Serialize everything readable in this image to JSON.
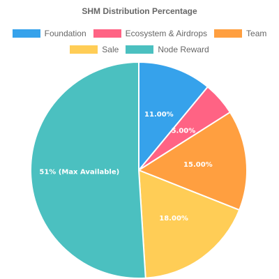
{
  "chart_data": {
    "type": "pie",
    "title": "SHM Distribution Percentage",
    "legend_position": "top",
    "series": [
      {
        "values": [
          11,
          5,
          15,
          18,
          51
        ],
        "data_labels": [
          "11.00%",
          "5.00%",
          "15.00%",
          "18.00%",
          "51% (Max Available)"
        ]
      }
    ],
    "categories": [
      "Foundation",
      "Ecosystem & Airdrops",
      "Team",
      "Sale",
      "Node Reward"
    ],
    "colors": [
      "#36a2eb",
      "#ff6384",
      "#ff9f40",
      "#ffcd56",
      "#4bc0c0"
    ],
    "slice_border_color": "#ffffff"
  }
}
